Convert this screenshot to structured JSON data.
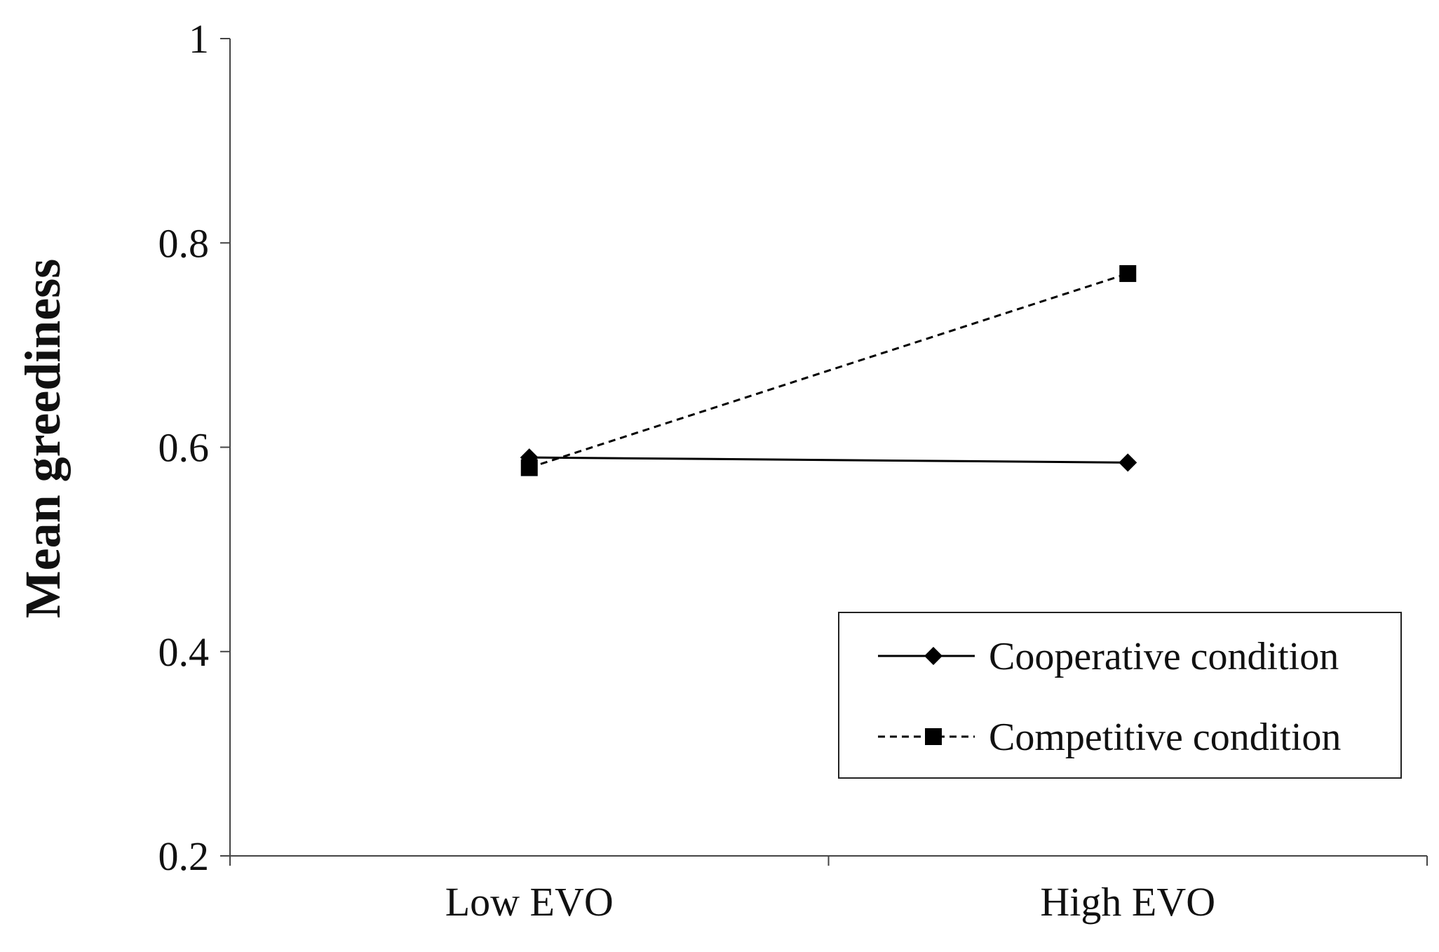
{
  "chart_data": {
    "type": "line",
    "title": "",
    "xlabel": "",
    "ylabel": "Mean greediness",
    "categories": [
      "Low EVO",
      "High EVO"
    ],
    "ylim": [
      0.2,
      1
    ],
    "yticks": [
      "0.2",
      "0.4",
      "0.6",
      "0.8",
      "1"
    ],
    "grid": false,
    "legend_position": "bottom-right",
    "series": [
      {
        "name": "Cooperative condition",
        "values": [
          0.59,
          0.585
        ],
        "marker": "diamond",
        "line_style": "solid",
        "color": "#000000"
      },
      {
        "name": "Competitive condition",
        "values": [
          0.58,
          0.77
        ],
        "marker": "square",
        "line_style": "dashed",
        "color": "#000000"
      }
    ]
  }
}
